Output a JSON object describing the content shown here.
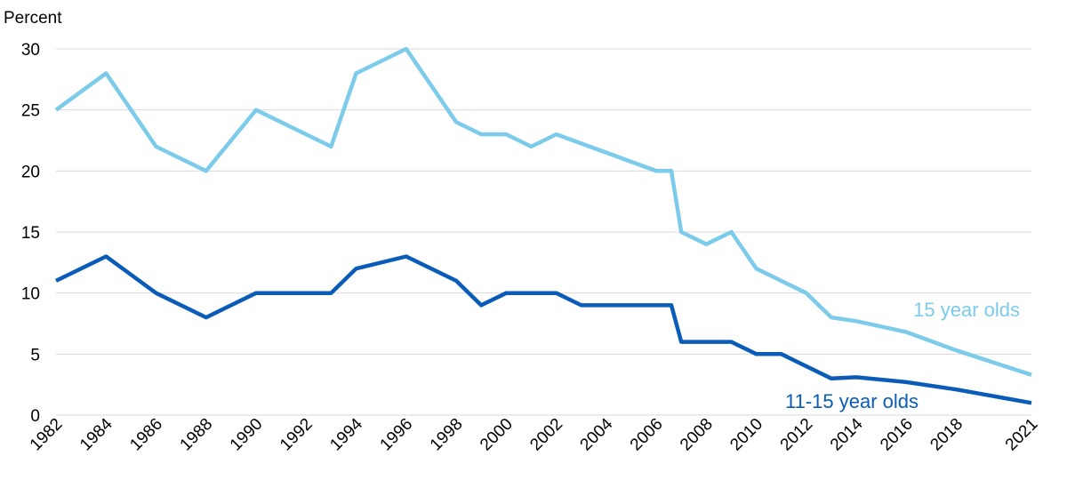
{
  "chart_data": {
    "type": "line",
    "ylabel": "Percent",
    "ylim": [
      0,
      30
    ],
    "yticks": [
      0,
      5,
      10,
      15,
      20,
      25,
      30
    ],
    "xlim": [
      1982,
      2021
    ],
    "xticks": [
      "1982",
      "1984",
      "1986",
      "1988",
      "1990",
      "1992",
      "1994",
      "1996",
      "1998",
      "2000",
      "2002",
      "2004",
      "2006",
      "2008",
      "2010",
      "2012",
      "2014",
      "2016",
      "2018",
      "2021"
    ],
    "grid": true,
    "series": [
      {
        "name": "15 year olds",
        "color": "#7ccbeb",
        "x": [
          1982,
          1984,
          1986,
          1988,
          1990,
          1993,
          1994,
          1996,
          1998,
          1999,
          2000,
          2001,
          2002,
          2006,
          2006.6,
          2007,
          2008,
          2009,
          2010,
          2012,
          2013,
          2014,
          2016,
          2018,
          2021
        ],
        "y": [
          25,
          28,
          22,
          20,
          25,
          22,
          28,
          30,
          24,
          23,
          23,
          22,
          23,
          20,
          20,
          15,
          14,
          15,
          12,
          10,
          8,
          7.7,
          6.8,
          5.3,
          3.3
        ]
      },
      {
        "name": "11-15 year olds",
        "color": "#0a5cb8",
        "x": [
          1982,
          1984,
          1986,
          1988,
          1990,
          1993,
          1994,
          1996,
          1998,
          1999,
          2000,
          2002,
          2003,
          2006,
          2006.6,
          2007,
          2008,
          2009,
          2010,
          2011,
          2013,
          2014,
          2016,
          2018,
          2021
        ],
        "y": [
          11,
          13,
          10,
          8,
          10,
          10,
          12,
          13,
          11,
          9,
          10,
          10,
          9,
          9,
          9,
          6,
          6,
          6,
          5,
          5,
          3,
          3.1,
          2.7,
          2.1,
          1
        ]
      }
    ]
  }
}
